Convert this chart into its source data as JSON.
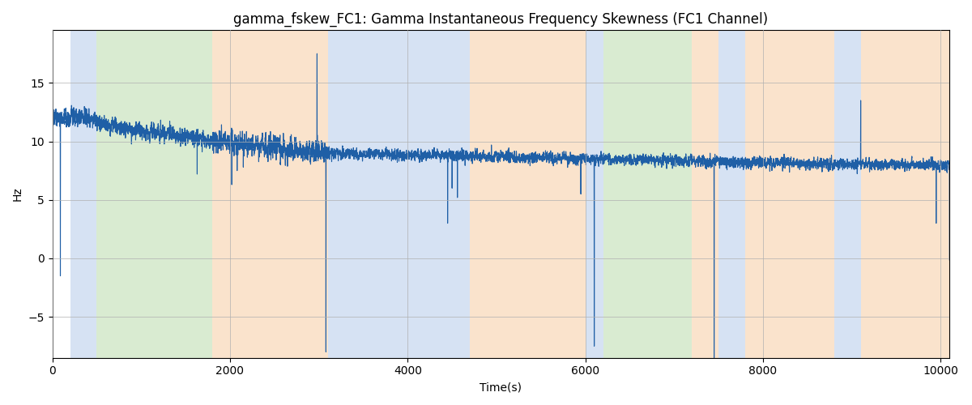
{
  "title": "gamma_fskew_FC1: Gamma Instantaneous Frequency Skewness (FC1 Channel)",
  "xlabel": "Time(s)",
  "ylabel": "Hz",
  "xlim": [
    0,
    10100
  ],
  "ylim": [
    -8.5,
    19.5
  ],
  "line_color": "#1f5fa6",
  "line_width": 0.8,
  "grid": true,
  "grid_color": "#b0b0b0",
  "grid_linewidth": 0.5,
  "bands": [
    {
      "xmin": 200,
      "xmax": 500,
      "color": "#aec6e8",
      "alpha": 0.5
    },
    {
      "xmin": 500,
      "xmax": 1800,
      "color": "#b5d9a5",
      "alpha": 0.5
    },
    {
      "xmin": 1800,
      "xmax": 3100,
      "color": "#f7c99a",
      "alpha": 0.5
    },
    {
      "xmin": 3100,
      "xmax": 4700,
      "color": "#aec6e8",
      "alpha": 0.5
    },
    {
      "xmin": 4700,
      "xmax": 6000,
      "color": "#f7c99a",
      "alpha": 0.5
    },
    {
      "xmin": 6000,
      "xmax": 6200,
      "color": "#aec6e8",
      "alpha": 0.5
    },
    {
      "xmin": 6200,
      "xmax": 7200,
      "color": "#b5d9a5",
      "alpha": 0.5
    },
    {
      "xmin": 7200,
      "xmax": 7500,
      "color": "#f7c99a",
      "alpha": 0.5
    },
    {
      "xmin": 7500,
      "xmax": 7800,
      "color": "#aec6e8",
      "alpha": 0.5
    },
    {
      "xmin": 7800,
      "xmax": 8800,
      "color": "#f7c99a",
      "alpha": 0.5
    },
    {
      "xmin": 8800,
      "xmax": 9100,
      "color": "#aec6e8",
      "alpha": 0.5
    },
    {
      "xmin": 9100,
      "xmax": 10200,
      "color": "#f7c99a",
      "alpha": 0.5
    }
  ],
  "title_fontsize": 12,
  "tick_fontsize": 10,
  "xticks": [
    0,
    2000,
    4000,
    6000,
    8000,
    10000
  ],
  "yticks": [
    -5,
    0,
    5,
    10,
    15
  ]
}
